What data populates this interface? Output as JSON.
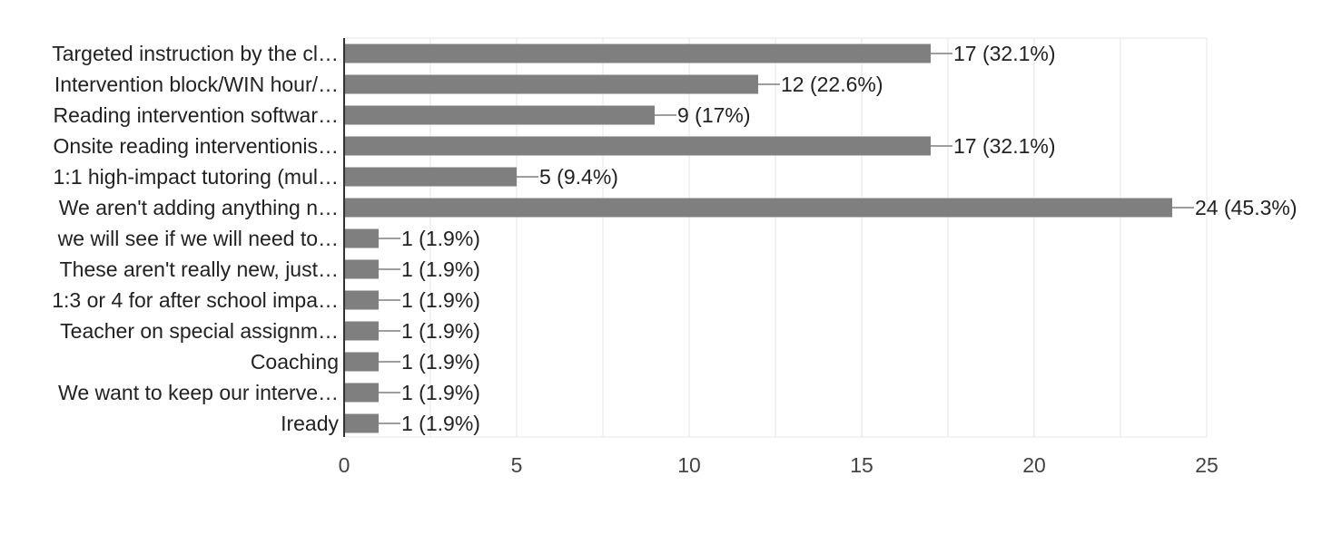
{
  "colors": {
    "bar": "#7f7f7f",
    "grid": "#e6e6e6",
    "axis": "#333333",
    "text": "#222222",
    "leader": "#7f7f7f"
  },
  "chart_data": {
    "type": "bar",
    "orientation": "horizontal",
    "categories": [
      "Targeted instruction by the cl…",
      "Intervention block/WIN hour/…",
      "Reading intervention softwar…",
      "Onsite reading interventionis…",
      "1:1 high-impact tutoring (mul…",
      "We aren't adding anything n…",
      "we will see if we will need to…",
      "These aren't really new, just…",
      "1:3 or 4 for after school impa…",
      "Teacher on special assignm…",
      "Coaching",
      "We want to keep our interve…",
      "Iready"
    ],
    "values": [
      17,
      12,
      9,
      17,
      5,
      24,
      1,
      1,
      1,
      1,
      1,
      1,
      1
    ],
    "data_labels": [
      "17 (32.1%)",
      "12 (22.6%)",
      "9 (17%)",
      "17 (32.1%)",
      "5 (9.4%)",
      "24 (45.3%)",
      "1 (1.9%)",
      "1 (1.9%)",
      "1 (1.9%)",
      "1 (1.9%)",
      "1 (1.9%)",
      "1 (1.9%)",
      "1 (1.9%)"
    ],
    "xlim": [
      0,
      25
    ],
    "xticks": [
      0,
      5,
      10,
      15,
      20,
      25
    ],
    "xtick_labels": [
      "0",
      "5",
      "10",
      "15",
      "20",
      "25"
    ],
    "grid": true,
    "legend": "none",
    "title": "",
    "xlabel": "",
    "ylabel": ""
  }
}
